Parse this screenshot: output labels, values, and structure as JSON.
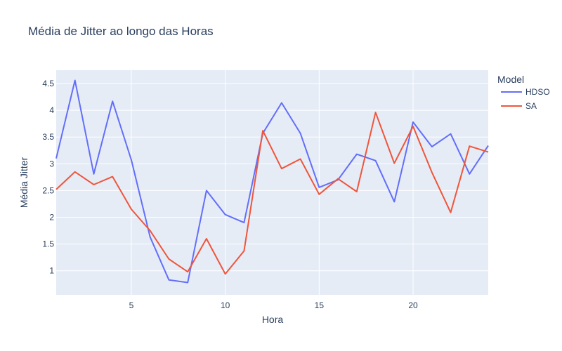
{
  "chart_data": {
    "type": "line",
    "title": "Média de Jitter ao longo das Horas",
    "xlabel": "Hora",
    "ylabel": "Média Jitter",
    "xlim": [
      1,
      24
    ],
    "ylim": [
      0.55,
      4.75
    ],
    "xticks": [
      5,
      10,
      15,
      20
    ],
    "yticks": [
      1,
      1.5,
      2,
      2.5,
      3,
      3.5,
      4,
      4.5
    ],
    "legend_title": "Model",
    "legend_position": "right",
    "grid": true,
    "x": [
      1,
      2,
      3,
      4,
      5,
      6,
      7,
      8,
      9,
      10,
      11,
      12,
      13,
      14,
      15,
      16,
      17,
      18,
      19,
      20,
      21,
      22,
      23,
      24
    ],
    "series": [
      {
        "name": "HDSO",
        "color": "#636efa",
        "values": [
          3.1,
          4.56,
          2.81,
          4.17,
          3.07,
          1.63,
          0.83,
          0.78,
          2.5,
          2.05,
          1.9,
          3.57,
          4.14,
          3.57,
          2.56,
          2.7,
          3.18,
          3.06,
          2.29,
          3.78,
          3.32,
          3.56,
          2.81,
          3.34
        ]
      },
      {
        "name": "SA",
        "color": "#ef553b",
        "values": [
          2.52,
          2.85,
          2.61,
          2.76,
          2.15,
          1.75,
          1.22,
          0.98,
          1.6,
          0.94,
          1.37,
          3.62,
          2.91,
          3.09,
          2.43,
          2.72,
          2.48,
          3.96,
          3.01,
          3.7,
          2.84,
          2.09,
          3.33,
          3.22
        ]
      }
    ]
  }
}
